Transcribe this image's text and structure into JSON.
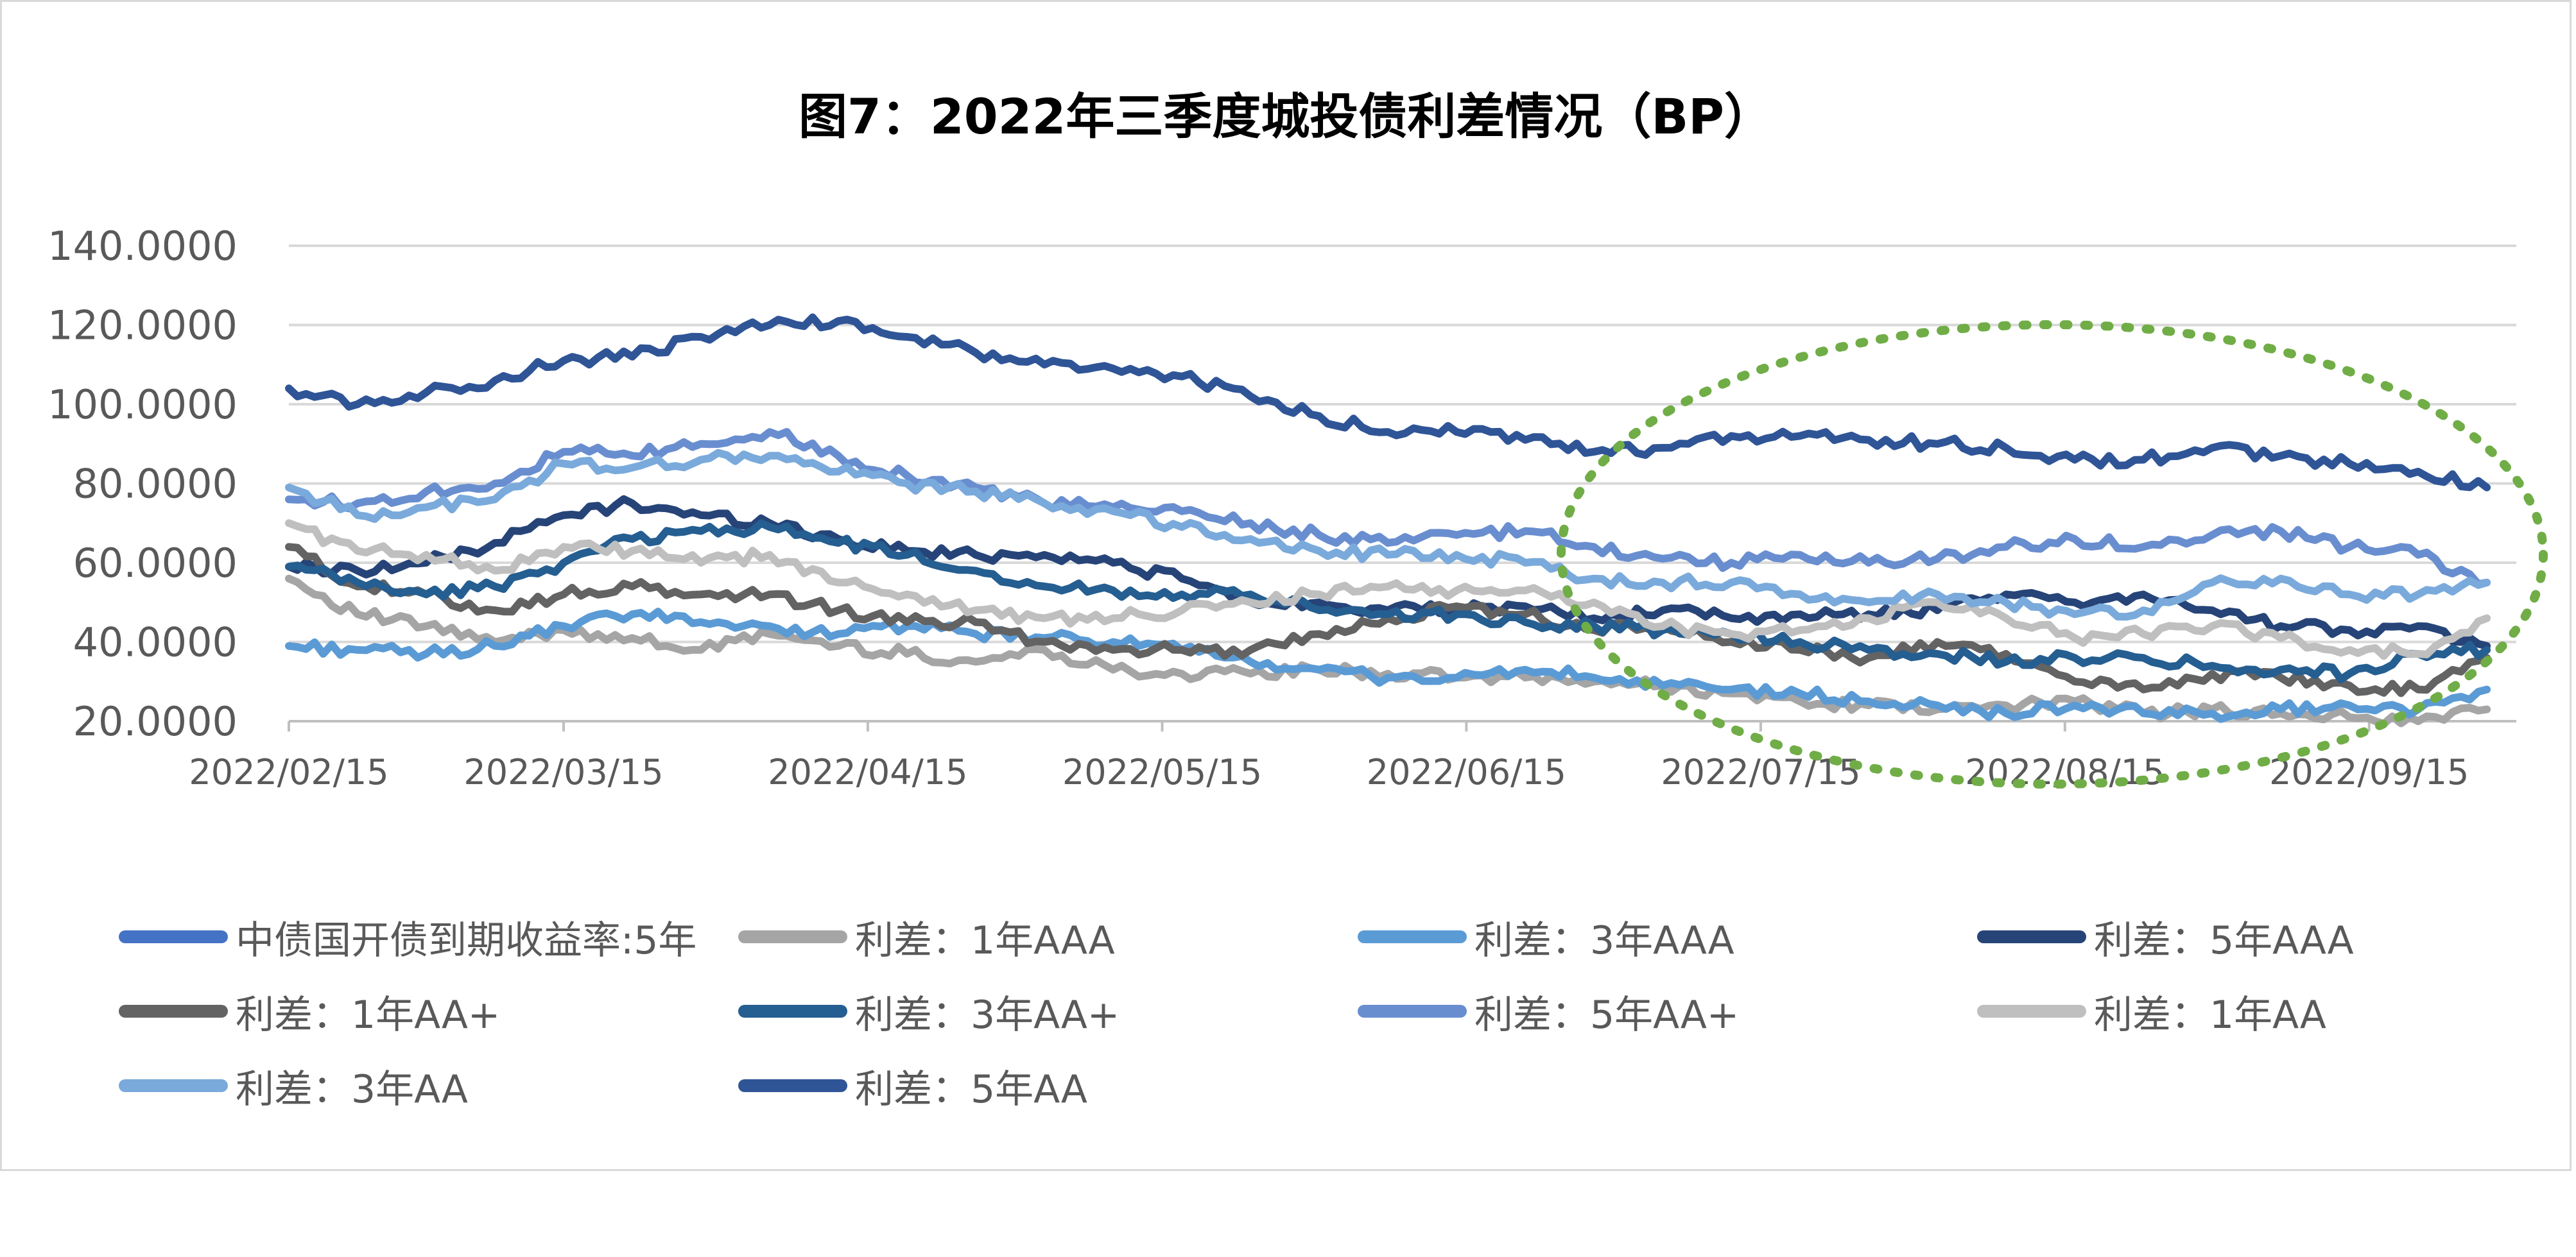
{
  "chart_data": {
    "type": "line",
    "title": "图7：2022年三季度城投债利差情况（BP）",
    "xlabel": "",
    "ylabel": "",
    "ylim": [
      20,
      140
    ],
    "y_ticks": [
      "20.0000",
      "40.0000",
      "60.0000",
      "80.0000",
      "100.0000",
      "120.0000",
      "140.0000"
    ],
    "x_ticks": [
      "2022/02/15",
      "2022/03/15",
      "2022/04/15",
      "2022/05/15",
      "2022/06/15",
      "2022/07/15",
      "2022/08/15",
      "2022/09/15"
    ],
    "x_dates": [
      "2022/02/15",
      "2022/02/22",
      "2022/03/01",
      "2022/03/08",
      "2022/03/15",
      "2022/03/22",
      "2022/03/29",
      "2022/04/05",
      "2022/04/12",
      "2022/04/19",
      "2022/04/26",
      "2022/05/03",
      "2022/05/10",
      "2022/05/17",
      "2022/05/24",
      "2022/05/31",
      "2022/06/07",
      "2022/06/14",
      "2022/06/21",
      "2022/06/28",
      "2022/07/05",
      "2022/07/12",
      "2022/07/19",
      "2022/07/26",
      "2022/08/02",
      "2022/08/09",
      "2022/08/16",
      "2022/08/23",
      "2022/08/30",
      "2022/09/06",
      "2022/09/13",
      "2022/09/20",
      "2022/09/27"
    ],
    "grid": true,
    "legend_position": "bottom",
    "annotation": "green dotted ellipse highlighting 2022/06/25 – 2022/09/30",
    "series": [
      {
        "name": "中债国开债到期收益率:5年",
        "color": "#4472C4",
        "values": []
      },
      {
        "name": "利差：1年AAA",
        "color": "#A5A5A5",
        "values": [
          56,
          47,
          44,
          40,
          43,
          41,
          38,
          42,
          39,
          37,
          35,
          38,
          33,
          32,
          32,
          33,
          32,
          31,
          31,
          30,
          29,
          27,
          25,
          24,
          23,
          24,
          25,
          22,
          23,
          22,
          21,
          20,
          23
        ]
      },
      {
        "name": "利差：3年AAA",
        "color": "#5B9BD5",
        "values": [
          39,
          38,
          37,
          39,
          44,
          47,
          45,
          44,
          42,
          44,
          42,
          41,
          40,
          38,
          35,
          33,
          31,
          31,
          33,
          31,
          29,
          28,
          27,
          25,
          24,
          22,
          24,
          22,
          22,
          23,
          24,
          23,
          28
        ]
      },
      {
        "name": "利差：5年AAA",
        "color": "#264478",
        "values": [
          59,
          58,
          60,
          65,
          72,
          75,
          72,
          70,
          66,
          63,
          62,
          62,
          60,
          56,
          50,
          50,
          48,
          48,
          49,
          46,
          48,
          46,
          47,
          47,
          48,
          52,
          50,
          52,
          48,
          44,
          43,
          44,
          39
        ]
      },
      {
        "name": "利差：1年AA+",
        "color": "#636363",
        "values": [
          64,
          54,
          52,
          48,
          52,
          54,
          52,
          52,
          48,
          45,
          45,
          40,
          38,
          38,
          38,
          42,
          46,
          49,
          47,
          43,
          44,
          40,
          38,
          36,
          40,
          37,
          30,
          28,
          32,
          31,
          29,
          28,
          36
        ]
      },
      {
        "name": "利差：3年AA+",
        "color": "#255E91",
        "values": [
          59,
          55,
          52,
          54,
          60,
          66,
          68,
          69,
          65,
          62,
          58,
          54,
          53,
          52,
          52,
          48,
          47,
          47,
          45,
          44,
          43,
          42,
          40,
          38,
          37,
          35,
          36,
          36,
          34,
          33,
          32,
          37,
          38
        ]
      },
      {
        "name": "利差：5年AA+",
        "color": "#698ED0",
        "values": [
          76,
          75,
          78,
          80,
          88,
          87,
          90,
          93,
          87,
          82,
          79,
          75,
          74,
          73,
          70,
          67,
          65,
          67,
          68,
          64,
          61,
          60,
          62,
          60,
          61,
          64,
          66,
          64,
          67,
          68,
          64,
          62,
          55
        ]
      },
      {
        "name": "利差：1年AA",
        "color": "#BFBFBF",
        "values": [
          70,
          63,
          62,
          58,
          64,
          63,
          60,
          62,
          55,
          52,
          48,
          46,
          46,
          48,
          50,
          52,
          54,
          53,
          53,
          50,
          44,
          42,
          43,
          46,
          50,
          46,
          41,
          42,
          44,
          41,
          38,
          37,
          46
        ]
      },
      {
        "name": "利差：3年AA",
        "color": "#7AAADB",
        "values": [
          79,
          72,
          74,
          76,
          85,
          84,
          86,
          87,
          83,
          80,
          78,
          75,
          73,
          69,
          66,
          63,
          62,
          62,
          60,
          56,
          55,
          55,
          52,
          50,
          52,
          50,
          47,
          48,
          55,
          56,
          52,
          52,
          55
        ]
      },
      {
        "name": "利差：5年AA",
        "color": "#2F5597",
        "values": [
          104,
          100,
          103,
          106,
          111,
          112,
          117,
          120,
          121,
          117,
          113,
          110,
          109,
          107,
          102,
          97,
          93,
          93,
          91,
          88,
          89,
          92,
          92,
          91,
          90,
          89,
          86,
          86,
          89,
          87,
          85,
          83,
          79
        ]
      }
    ]
  }
}
